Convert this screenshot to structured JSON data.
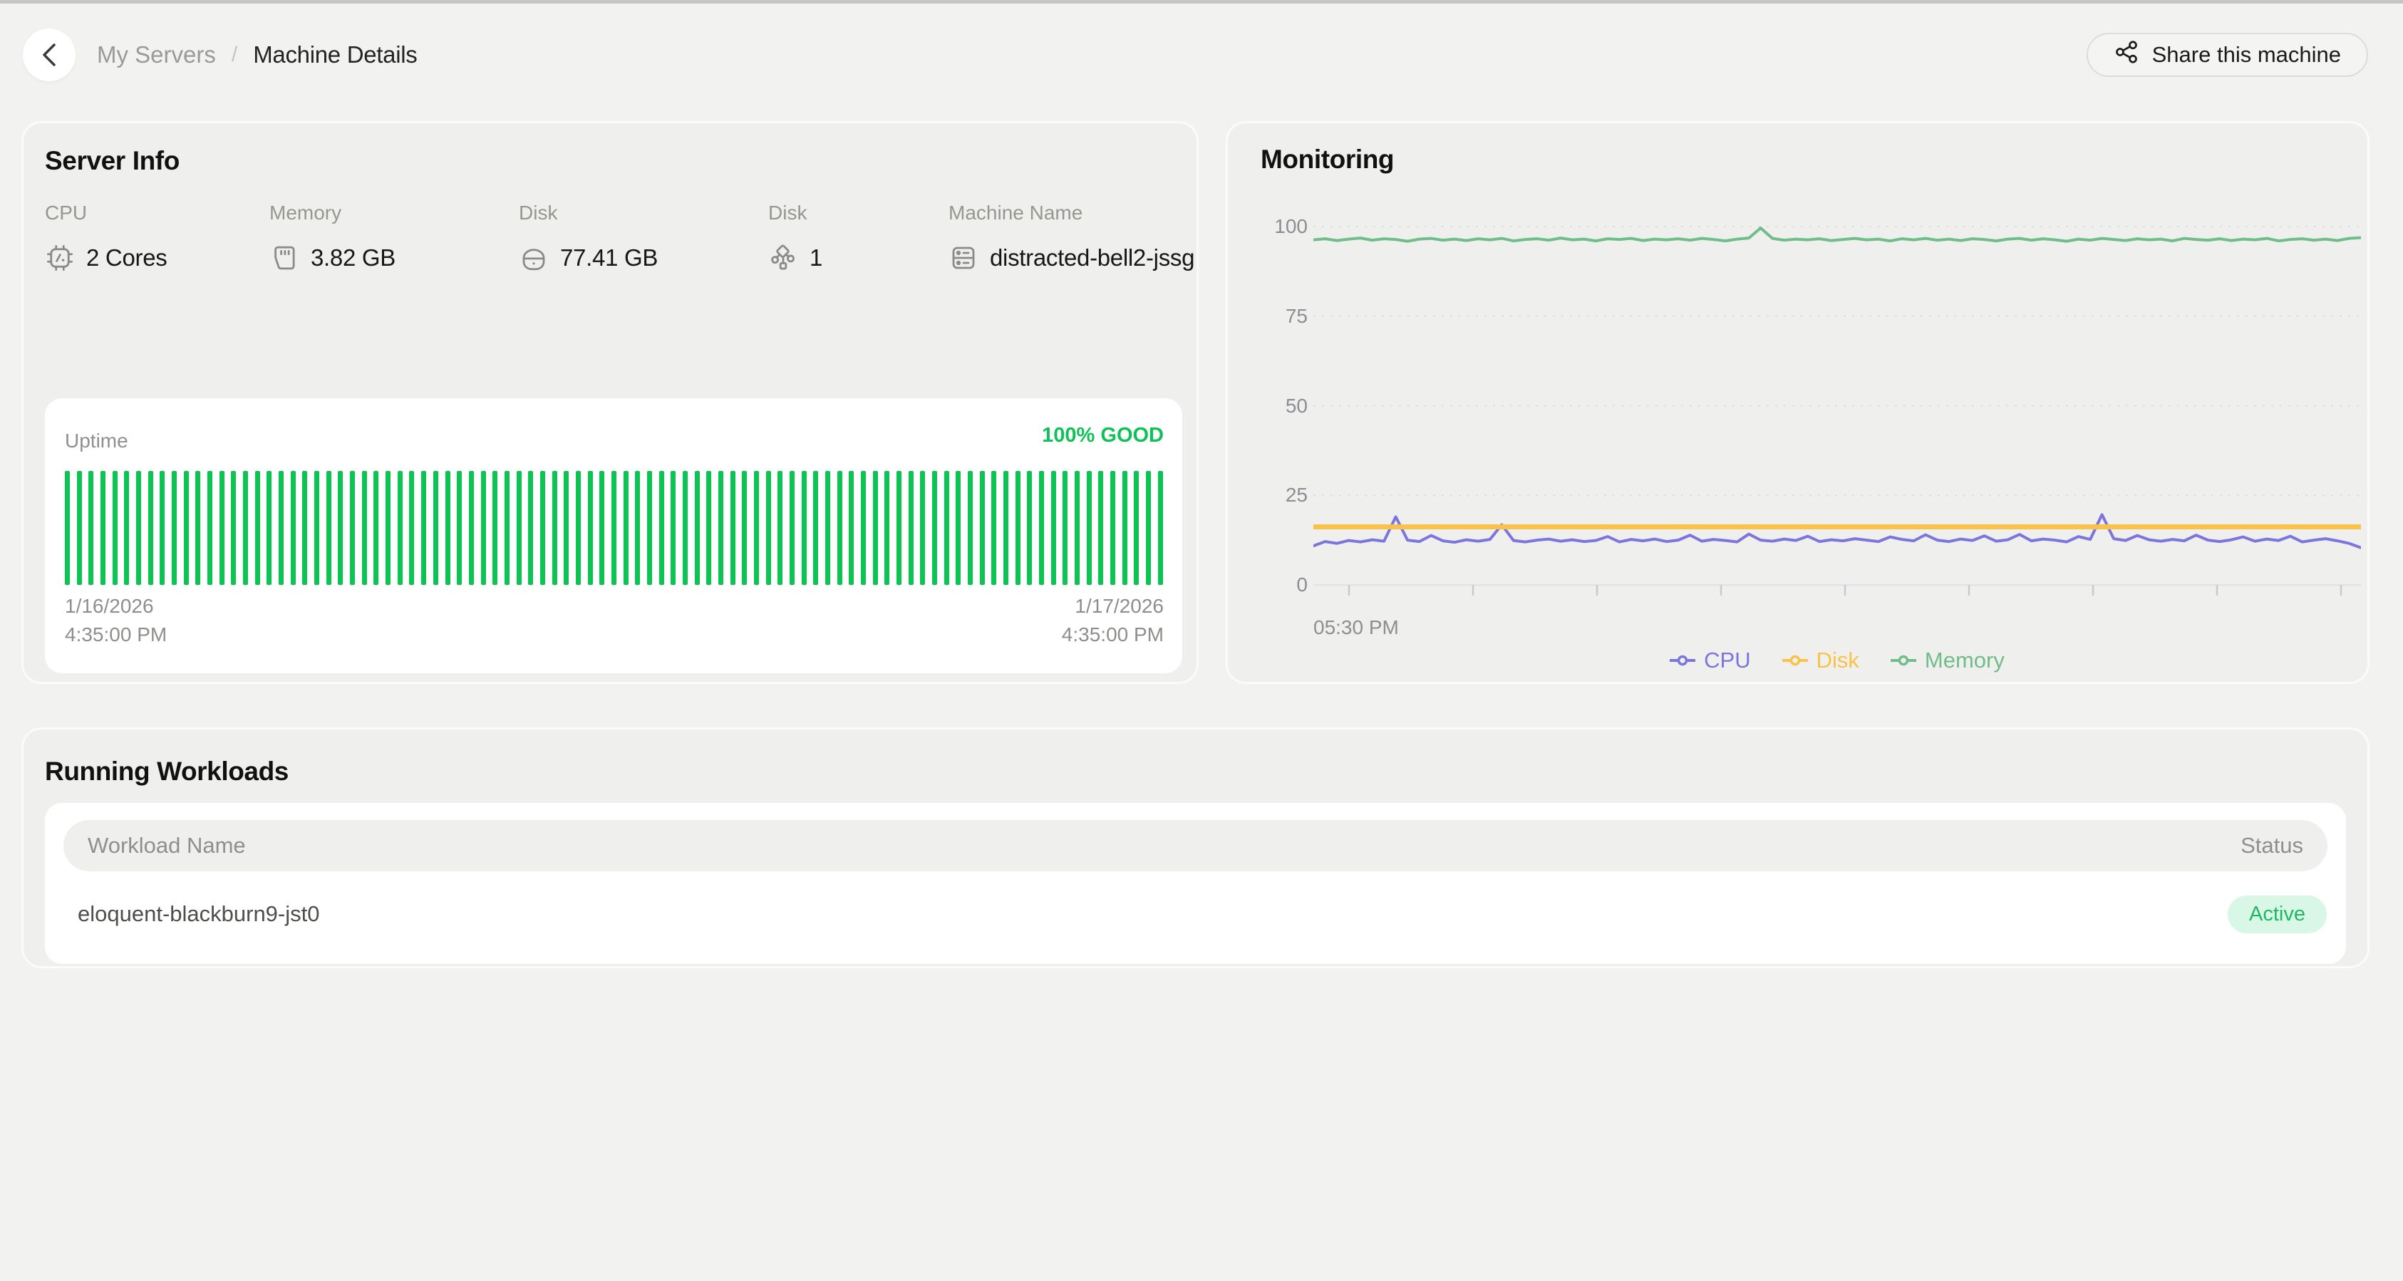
{
  "colors": {
    "uptime_green": "#0cc452",
    "status_green": "#21b863",
    "badge_bg": "#d9f7e6",
    "cpu": "#7c75dd",
    "disk": "#f9c24a",
    "memory": "#6fbe8a"
  },
  "header": {
    "breadcrumb": [
      {
        "label": "My Servers"
      },
      {
        "label": "Machine Details"
      }
    ],
    "separator": "/",
    "share_button_label": "Share this machine"
  },
  "server_info": {
    "title": "Server Info",
    "fields": [
      {
        "label": "CPU",
        "value": "2 Cores",
        "icon": "cpu-icon"
      },
      {
        "label": "Memory",
        "value": "3.82 GB",
        "icon": "memory-icon"
      },
      {
        "label": "Disk",
        "value": "77.41 GB",
        "icon": "hard-drive-icon"
      },
      {
        "label": "Disk",
        "value": "1",
        "icon": "share-nodes-icon"
      },
      {
        "label": "Machine Name",
        "value": "distracted-bell2-jssg",
        "icon": "server-icon"
      }
    ],
    "uptime": {
      "label": "Uptime",
      "status": "100% GOOD",
      "bars": 93,
      "start_date": "1/16/2026",
      "start_time": "4:35:00 PM",
      "end_date": "1/17/2026",
      "end_time": "4:35:00 PM"
    }
  },
  "monitoring": {
    "title": "Monitoring"
  },
  "chart_data": {
    "type": "line",
    "title": "Monitoring",
    "ylim": [
      0,
      100
    ],
    "yticks": [
      0,
      25,
      50,
      75,
      100
    ],
    "xtick_labels": [
      "05:30 PM"
    ],
    "x_tick_count": 9,
    "grid": "dashed-horizontal",
    "legend_position": "bottom-center",
    "series": [
      {
        "name": "CPU",
        "color": "#7c75dd",
        "values": [
          10.9,
          12.1,
          11.6,
          12.4,
          12.0,
          12.6,
          12.2,
          19.0,
          12.5,
          12.1,
          13.8,
          12.3,
          11.9,
          12.6,
          12.2,
          12.7,
          16.8,
          12.4,
          12.0,
          12.5,
          12.8,
          12.2,
          12.6,
          12.1,
          12.4,
          13.5,
          12.0,
          12.7,
          12.3,
          12.8,
          12.1,
          12.5,
          13.9,
          12.2,
          12.7,
          12.4,
          12.0,
          14.2,
          12.5,
          12.2,
          12.8,
          12.4,
          13.6,
          12.1,
          12.6,
          12.3,
          12.9,
          12.5,
          12.1,
          13.4,
          12.7,
          12.3,
          14.0,
          12.5,
          12.1,
          12.8,
          12.4,
          13.7,
          12.2,
          12.6,
          14.1,
          12.3,
          12.8,
          12.5,
          12.0,
          13.5,
          12.7,
          19.6,
          12.9,
          12.4,
          13.8,
          12.6,
          12.2,
          12.7,
          12.3,
          13.9,
          12.5,
          12.1,
          12.6,
          13.4,
          12.2,
          12.8,
          12.4,
          13.6,
          12.0,
          12.5,
          12.9,
          12.3,
          11.6,
          10.4
        ]
      },
      {
        "name": "Disk",
        "color": "#f9c24a",
        "values": [
          16.2,
          16.2
        ]
      },
      {
        "name": "Memory",
        "color": "#6fbe8a",
        "values": [
          96.3,
          96.6,
          96.1,
          96.5,
          96.8,
          96.2,
          96.6,
          96.4,
          95.9,
          96.5,
          96.7,
          96.2,
          96.5,
          96.1,
          96.6,
          96.3,
          96.7,
          96.0,
          96.4,
          96.6,
          96.2,
          96.8,
          96.3,
          96.5,
          96.0,
          96.6,
          96.4,
          96.7,
          96.1,
          96.5,
          96.3,
          96.6,
          96.2,
          96.7,
          96.4,
          96.0,
          96.5,
          96.8,
          99.6,
          96.7,
          96.2,
          96.5,
          96.3,
          96.6,
          96.1,
          96.4,
          96.7,
          96.3,
          96.5,
          96.0,
          96.6,
          96.3,
          96.7,
          96.2,
          96.5,
          96.1,
          96.6,
          96.4,
          96.0,
          96.5,
          96.7,
          96.2,
          96.6,
          96.3,
          95.9,
          96.5,
          96.2,
          96.7,
          96.4,
          96.1,
          96.6,
          96.3,
          96.5,
          96.0,
          96.7,
          96.4,
          96.2,
          96.6,
          96.1,
          96.5,
          96.3,
          96.7,
          96.0,
          96.4,
          96.6,
          96.2,
          96.5,
          96.1,
          96.7,
          96.9
        ]
      }
    ]
  },
  "workloads": {
    "title": "Running Workloads",
    "columns": [
      "Workload Name",
      "Status"
    ],
    "rows": [
      {
        "name": "eloquent-blackburn9-jst0",
        "status": "Active"
      }
    ]
  }
}
